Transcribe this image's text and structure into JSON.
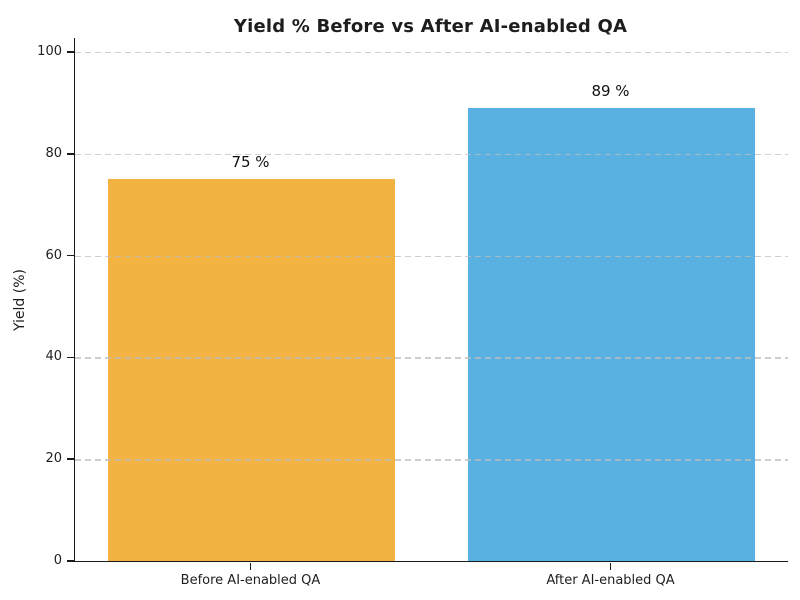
{
  "figure": {
    "title": "Yield % Before vs After AI-enabled QA",
    "ylabel": "Yield (%)"
  },
  "chart_data": {
    "type": "bar",
    "title": "Yield % Before vs After AI-enabled QA",
    "categories": [
      "Before AI-enabled QA",
      "After AI-enabled QA"
    ],
    "values": [
      75,
      89
    ],
    "bar_labels": [
      "75 %",
      "89 %"
    ],
    "bar_colors": [
      "#F2B342",
      "#58B1E0"
    ],
    "xlabel": "",
    "ylabel": "Yield (%)",
    "ylim": [
      0,
      102.5
    ],
    "yticks": [
      0,
      20,
      40,
      60,
      80,
      100
    ],
    "grid": "horizontal-dashed-over-bars",
    "legend": "none"
  }
}
